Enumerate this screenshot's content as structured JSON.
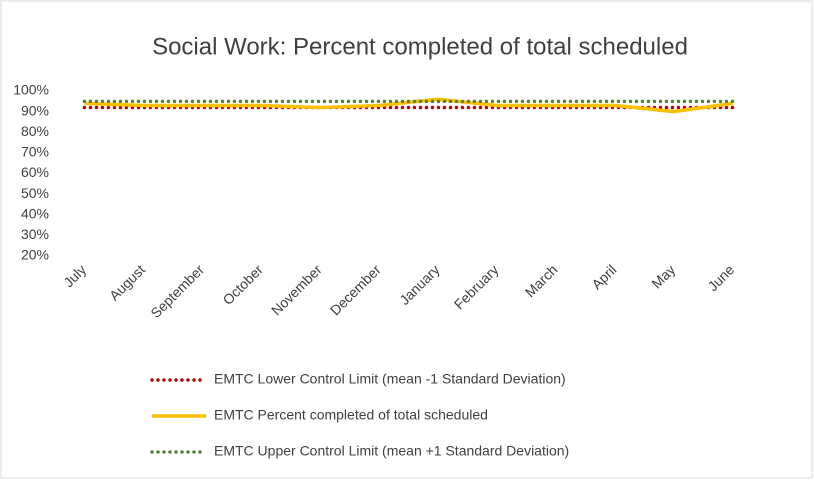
{
  "chart_data": {
    "type": "line",
    "title": "Social Work: Percent completed of total scheduled",
    "categories": [
      "July",
      "August",
      "September",
      "October",
      "November",
      "December",
      "January",
      "February",
      "March",
      "April",
      "May",
      "June"
    ],
    "series": [
      {
        "name": "EMTC Lower Control Limit (mean -1 Standard Deviation)",
        "color": "#c00000",
        "dash": "dotted",
        "values": [
          92,
          92,
          92,
          92,
          92,
          92,
          92,
          92,
          92,
          92,
          92,
          92
        ]
      },
      {
        "name": "EMTC Percent completed of total scheduled",
        "color": "#ffc000",
        "dash": "solid",
        "values": [
          94,
          93,
          93,
          93,
          92,
          93,
          96,
          93,
          93,
          93,
          90,
          94
        ]
      },
      {
        "name": "EMTC Upper Control Limit (mean +1 Standard Deviation)",
        "color": "#548235",
        "dash": "dotted",
        "values": [
          95,
          95,
          95,
          95,
          95,
          95,
          95,
          95,
          95,
          95,
          95,
          95
        ]
      }
    ],
    "ylim": [
      20,
      100
    ],
    "yticks": [
      {
        "value": 20,
        "label": "20%"
      },
      {
        "value": 30,
        "label": "30%"
      },
      {
        "value": 40,
        "label": "40%"
      },
      {
        "value": 50,
        "label": "50%"
      },
      {
        "value": 60,
        "label": "60%"
      },
      {
        "value": 70,
        "label": "70%"
      },
      {
        "value": 80,
        "label": "80%"
      },
      {
        "value": 90,
        "label": "90%"
      },
      {
        "value": 100,
        "label": "100%"
      }
    ],
    "legend": "bottom"
  }
}
